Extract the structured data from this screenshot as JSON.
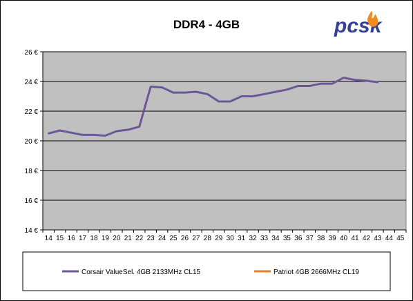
{
  "chart_data": {
    "type": "line",
    "title": "DDR4 - 4GB",
    "x_ticks": [
      14,
      15,
      16,
      17,
      18,
      19,
      20,
      21,
      22,
      23,
      24,
      25,
      26,
      27,
      28,
      29,
      30,
      31,
      32,
      33,
      34,
      35,
      36,
      37,
      38,
      39,
      40,
      41,
      42,
      43,
      44,
      45
    ],
    "ylim": [
      14,
      26
    ],
    "y_ticks": [
      14,
      16,
      18,
      20,
      22,
      24,
      26
    ],
    "y_tick_suffix": " €",
    "grid": "horizontal",
    "plot_background": "#c0c0c0",
    "legend_position": "bottom",
    "series": [
      {
        "name": "Corsair ValueSel. 4GB 2133MHz CL15",
        "color": "#6c5796",
        "x": [
          14,
          15,
          16,
          17,
          18,
          19,
          20,
          21,
          22,
          23,
          24,
          25,
          26,
          27,
          28,
          29,
          30,
          31,
          32,
          33,
          34,
          35,
          36,
          37,
          38,
          39,
          40,
          41,
          42,
          43
        ],
        "values": [
          20.5,
          20.7,
          20.55,
          20.4,
          20.4,
          20.35,
          20.65,
          20.75,
          20.95,
          23.65,
          23.6,
          23.25,
          23.25,
          23.3,
          23.15,
          22.65,
          22.65,
          23.0,
          23.0,
          23.15,
          23.3,
          23.45,
          23.7,
          23.7,
          23.85,
          23.85,
          24.25,
          24.1,
          24.05,
          23.95
        ]
      },
      {
        "name": "Patriot 4GB 2666MHz CL19",
        "color": "#e77c22",
        "x": [],
        "values": []
      }
    ]
  },
  "logo": {
    "text": "pcsk",
    "color": "#343f96",
    "flame_color": "#f28a1e"
  }
}
